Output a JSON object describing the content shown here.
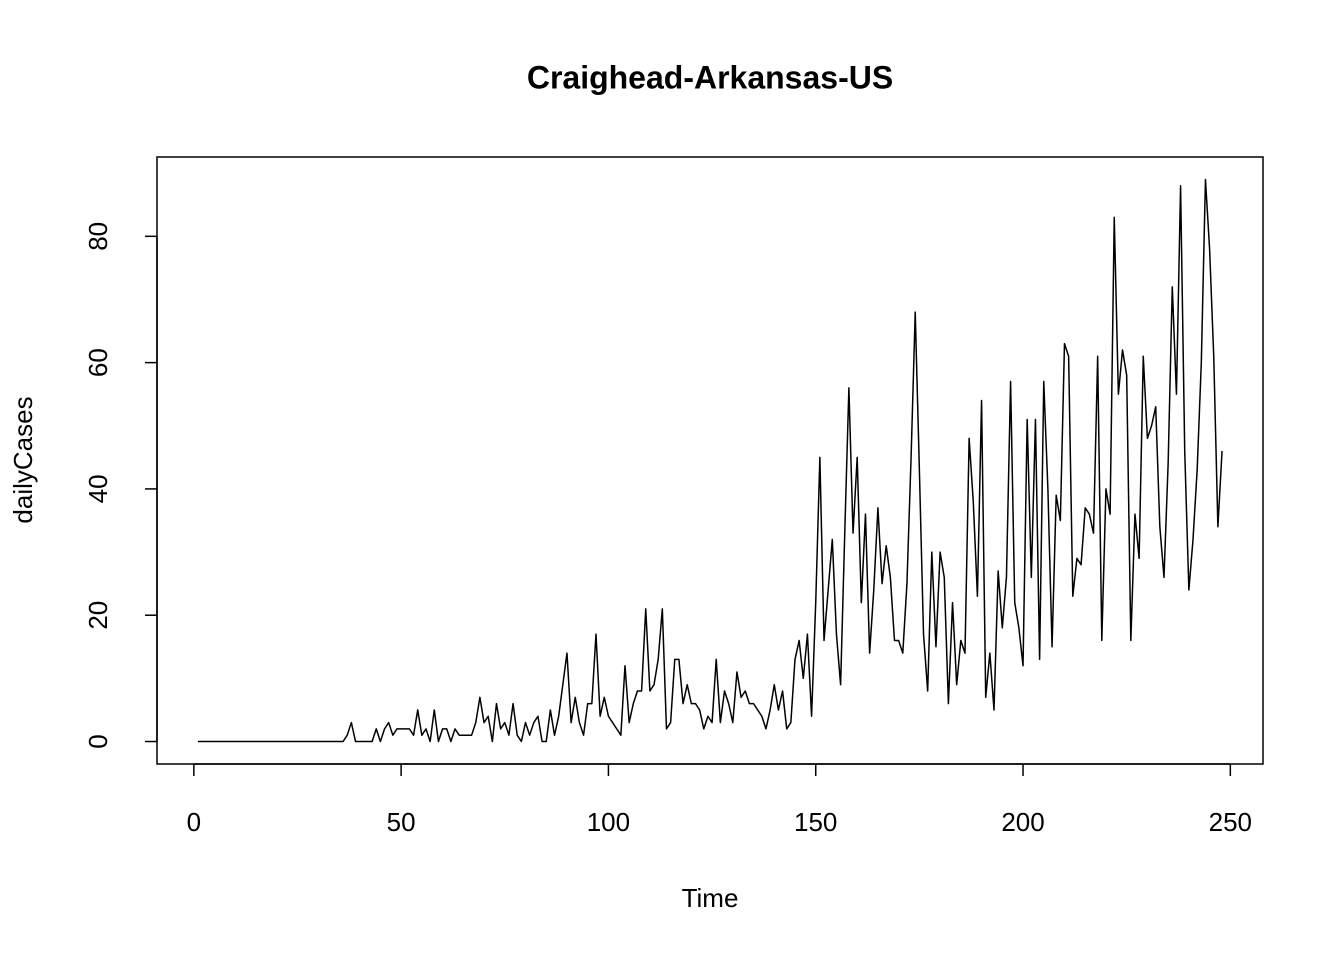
{
  "chart_data": {
    "type": "line",
    "title": "Craighead-Arkansas-US",
    "x_label": "Time",
    "y_label": "dailyCases",
    "x": [
      1,
      2,
      3,
      4,
      5,
      6,
      7,
      8,
      9,
      10,
      11,
      12,
      13,
      14,
      15,
      16,
      17,
      18,
      19,
      20,
      21,
      22,
      23,
      24,
      25,
      26,
      27,
      28,
      29,
      30,
      31,
      32,
      33,
      34,
      35,
      36,
      37,
      38,
      39,
      40,
      41,
      42,
      43,
      44,
      45,
      46,
      47,
      48,
      49,
      50,
      51,
      52,
      53,
      54,
      55,
      56,
      57,
      58,
      59,
      60,
      61,
      62,
      63,
      64,
      65,
      66,
      67,
      68,
      69,
      70,
      71,
      72,
      73,
      74,
      75,
      76,
      77,
      78,
      79,
      80,
      81,
      82,
      83,
      84,
      85,
      86,
      87,
      88,
      89,
      90,
      91,
      92,
      93,
      94,
      95,
      96,
      97,
      98,
      99,
      100,
      101,
      102,
      103,
      104,
      105,
      106,
      107,
      108,
      109,
      110,
      111,
      112,
      113,
      114,
      115,
      116,
      117,
      118,
      119,
      120,
      121,
      122,
      123,
      124,
      125,
      126,
      127,
      128,
      129,
      130,
      131,
      132,
      133,
      134,
      135,
      136,
      137,
      138,
      139,
      140,
      141,
      142,
      143,
      144,
      145,
      146,
      147,
      148,
      149,
      150,
      151,
      152,
      153,
      154,
      155,
      156,
      157,
      158,
      159,
      160,
      161,
      162,
      163,
      164,
      165,
      166,
      167,
      168,
      169,
      170,
      171,
      172,
      173,
      174,
      175,
      176,
      177,
      178,
      179,
      180,
      181,
      182,
      183,
      184,
      185,
      186,
      187,
      188,
      189,
      190,
      191,
      192,
      193,
      194,
      195,
      196,
      197,
      198,
      199,
      200,
      201,
      202,
      203,
      204,
      205,
      206,
      207,
      208,
      209,
      210,
      211,
      212,
      213,
      214,
      215,
      216,
      217,
      218,
      219,
      220,
      221,
      222,
      223,
      224,
      225,
      226,
      227,
      228,
      229,
      230,
      231,
      232,
      233,
      234,
      235,
      236,
      237,
      238,
      239,
      240,
      241,
      242,
      243,
      244,
      245,
      246,
      247,
      248
    ],
    "series": [
      {
        "name": "dailyCases",
        "color": "#000000",
        "values": [
          0,
          0,
          0,
          0,
          0,
          0,
          0,
          0,
          0,
          0,
          0,
          0,
          0,
          0,
          0,
          0,
          0,
          0,
          0,
          0,
          0,
          0,
          0,
          0,
          0,
          0,
          0,
          0,
          0,
          0,
          0,
          0,
          0,
          0,
          0,
          0,
          1,
          3,
          0,
          0,
          0,
          0,
          0,
          2,
          0,
          2,
          3,
          1,
          2,
          2,
          2,
          2,
          1,
          5,
          1,
          2,
          0,
          5,
          0,
          2,
          2,
          0,
          2,
          1,
          1,
          1,
          1,
          3,
          7,
          3,
          4,
          0,
          6,
          2,
          3,
          1,
          6,
          1,
          0,
          3,
          1,
          3,
          4,
          0,
          0,
          5,
          1,
          4,
          9,
          14,
          3,
          7,
          3,
          1,
          6,
          6,
          17,
          4,
          7,
          4,
          3,
          2,
          1,
          12,
          3,
          6,
          8,
          8,
          21,
          8,
          9,
          13,
          21,
          2,
          3,
          13,
          13,
          6,
          9,
          6,
          6,
          5,
          2,
          4,
          3,
          13,
          3,
          8,
          6,
          3,
          11,
          7,
          8,
          6,
          6,
          5,
          4,
          2,
          5,
          9,
          5,
          8,
          2,
          3,
          13,
          16,
          10,
          17,
          4,
          22,
          45,
          16,
          24,
          32,
          17,
          9,
          33,
          56,
          33,
          45,
          22,
          36,
          14,
          24,
          37,
          25,
          31,
          26,
          16,
          16,
          14,
          25,
          45,
          68,
          43,
          17,
          8,
          30,
          15,
          30,
          26,
          6,
          22,
          9,
          16,
          14,
          48,
          38,
          23,
          54,
          7,
          14,
          5,
          27,
          18,
          26,
          57,
          22,
          18,
          12,
          51,
          26,
          51,
          13,
          57,
          40,
          15,
          39,
          35,
          63,
          61,
          23,
          29,
          28,
          37,
          36,
          33,
          61,
          16,
          40,
          36,
          83,
          55,
          62,
          58,
          16,
          36,
          29,
          61,
          48,
          50,
          53,
          34,
          26,
          44,
          72,
          55,
          88,
          46,
          24,
          32,
          43,
          60,
          89,
          78,
          61,
          34,
          46
        ]
      }
    ],
    "xlim": [
      -8.88,
      257.88
    ],
    "ylim": [
      -3.56,
      92.56
    ],
    "xticks": [
      0,
      50,
      100,
      150,
      200,
      250
    ],
    "yticks": [
      0,
      20,
      40,
      60,
      80
    ]
  }
}
